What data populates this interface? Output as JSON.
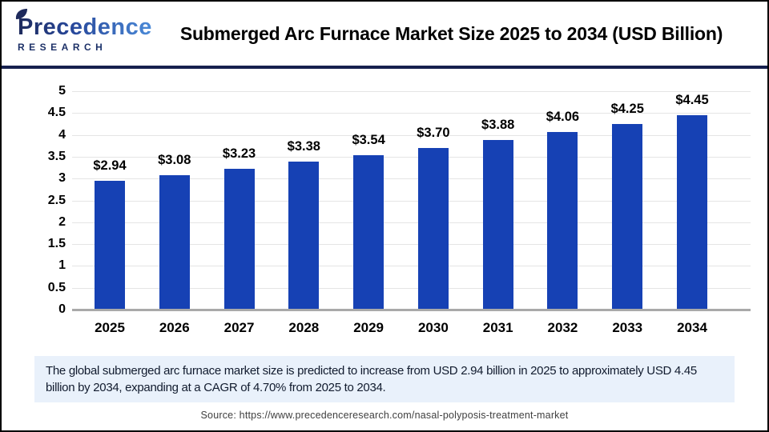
{
  "logo": {
    "brand": "Precedence",
    "sub": "RESEARCH"
  },
  "header": {
    "title": "Submerged Arc Furnace Market Size 2025 to 2034 (USD Billion)"
  },
  "chart_data": {
    "type": "bar",
    "title": "Submerged Arc Furnace Market Size 2025 to 2034 (USD Billion)",
    "categories": [
      "2025",
      "2026",
      "2027",
      "2028",
      "2029",
      "2030",
      "2031",
      "2032",
      "2033",
      "2034"
    ],
    "values": [
      2.94,
      3.08,
      3.23,
      3.38,
      3.54,
      3.7,
      3.88,
      4.06,
      4.25,
      4.45
    ],
    "bar_labels": [
      "$2.94",
      "$3.08",
      "$3.23",
      "$3.38",
      "$3.54",
      "$3.70",
      "$3.88",
      "$4.06",
      "$4.25",
      "$4.45"
    ],
    "xlabel": "",
    "ylabel": "",
    "ylim": [
      0,
      5
    ],
    "yticks": [
      "0",
      "0.5",
      "1",
      "1.5",
      "2",
      "2.5",
      "3",
      "3.5",
      "4",
      "4.5",
      "5"
    ],
    "grid": true,
    "legend": "none",
    "bar_color": "#1641b4"
  },
  "caption": {
    "text": "The global submerged arc furnace market size is predicted to increase from USD 2.94 billion in 2025 to approximately USD 4.45 billion by 2034, expanding at a CAGR of 4.70% from 2025 to 2034."
  },
  "source": {
    "text": "Source: https://www.precedenceresearch.com/nasal-polyposis-treatment-market"
  },
  "colors": {
    "bar": "#1641b4",
    "divider": "#16204e",
    "caption_bg": "#e9f1fb",
    "gridline": "#e4e4e4",
    "axisline": "#a9a9a9"
  }
}
